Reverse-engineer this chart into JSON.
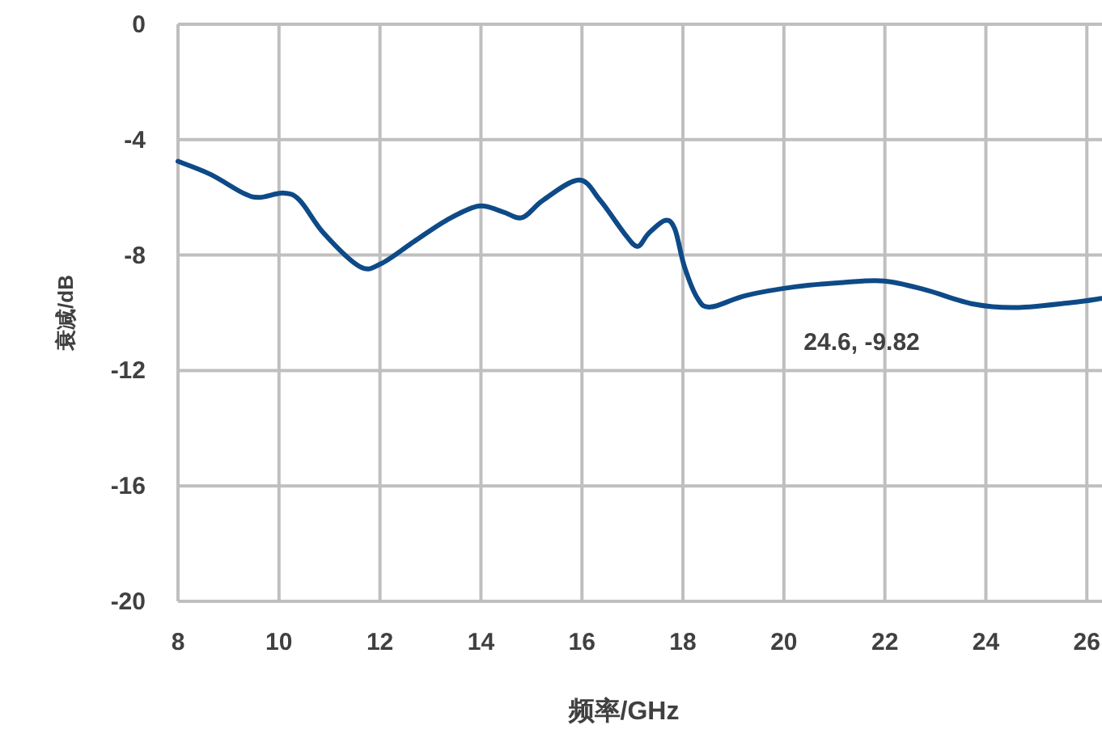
{
  "chart_data": {
    "type": "line",
    "xlabel": "频率/GHz",
    "ylabel": "衰减/dB",
    "xlim": [
      8,
      26.3
    ],
    "ylim": [
      -20,
      0
    ],
    "xticks": [
      8,
      10,
      12,
      14,
      16,
      18,
      20,
      22,
      24,
      26
    ],
    "yticks": [
      -20,
      -16,
      -12,
      -8,
      -4,
      0
    ],
    "grid": true,
    "series": [
      {
        "color": "#0d4a87",
        "x": [
          8,
          8.64,
          9.29,
          9.61,
          10.09,
          10.41,
          10.89,
          11.6,
          12.02,
          12.66,
          13.31,
          13.95,
          14.43,
          14.82,
          15.23,
          15.94,
          16.36,
          16.84,
          17.1,
          17.32,
          17.65,
          17.84,
          18.03,
          18.29,
          18.55,
          19.25,
          20.22,
          21.18,
          21.99,
          22.79,
          23.76,
          24.6,
          25.68,
          26.3
        ],
        "values": [
          -4.75,
          -5.2,
          -5.85,
          -6.0,
          -5.85,
          -6.1,
          -7.25,
          -8.4,
          -8.3,
          -7.55,
          -6.8,
          -6.3,
          -6.5,
          -6.7,
          -6.1,
          -5.4,
          -6.1,
          -7.25,
          -7.7,
          -7.25,
          -6.8,
          -7.1,
          -8.4,
          -9.5,
          -9.8,
          -9.4,
          -9.1,
          -8.95,
          -8.9,
          -9.2,
          -9.7,
          -9.82,
          -9.65,
          -9.5
        ]
      }
    ],
    "annotations": [
      "24.6, -9.82"
    ]
  }
}
